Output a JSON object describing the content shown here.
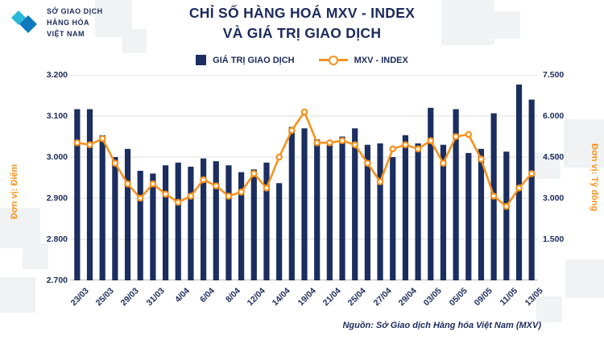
{
  "logo": {
    "line1": "SỞ GIAO DỊCH",
    "line2": "HÀNG HÓA",
    "line3": "VIỆT NAM"
  },
  "title": {
    "line1": "CHỈ SỐ HÀNG HOÁ MXV - INDEX",
    "line2": "VÀ GIÁ TRỊ GIAO DỊCH"
  },
  "legend": {
    "bars": "GIÁ TRỊ GIAO DỊCH",
    "line": "MXV - INDEX"
  },
  "axes": {
    "left_unit": "Đơn vị: Điểm",
    "right_unit": "Đơn vị: Tỷ đồng",
    "left_ticks": [
      "3.200",
      "3.100",
      "3.000",
      "2.900",
      "2.800",
      "2.700"
    ],
    "right_ticks": [
      "7.500",
      "6.000",
      "4.500",
      "3.000",
      "1.500",
      ""
    ]
  },
  "source": "Nguồn: Sở Giao dịch Hàng hóa Việt Nam (MXV)",
  "colors": {
    "navy": "#1b2e5f",
    "orange": "#f6921e",
    "grid": "#dcdcdc"
  },
  "chart_data": {
    "type": "bar",
    "title": "CHỈ SỐ HÀNG HOÁ MXV - INDEX VÀ GIÁ TRỊ GIAO DỊCH",
    "grid": true,
    "legend_position": "top",
    "x_tick_labels": [
      "23/03",
      "25/03",
      "29/03",
      "31/03",
      "4/04",
      "6/04",
      "8/04",
      "12/04",
      "14/04",
      "19/04",
      "21/04",
      "25/04",
      "27/04",
      "29/04",
      "03/05",
      "05/05",
      "09/05",
      "11/05",
      "13/05"
    ],
    "x_label_every": 2,
    "left_axis": {
      "label": "Đơn vị: Điểm",
      "min": 2700,
      "max": 3200,
      "step": 100
    },
    "right_axis": {
      "label": "Đơn vị: Tỷ đồng",
      "min": 0,
      "max": 7500,
      "step": 1500
    },
    "series": [
      {
        "name": "GIÁ TRỊ GIAO DỊCH",
        "type": "bar",
        "axis": "right",
        "color": "#1b2e5f",
        "values": [
          6250,
          6250,
          5300,
          4500,
          4800,
          4000,
          3900,
          4200,
          4300,
          4150,
          4450,
          4350,
          4200,
          3950,
          4050,
          4300,
          3550,
          5600,
          5550,
          5150,
          5100,
          5250,
          5550,
          4950,
          5000,
          4500,
          5300,
          5000,
          6300,
          4950,
          6250,
          4650,
          4800,
          6100,
          4700,
          7150,
          6600
        ]
      },
      {
        "name": "MXV - INDEX",
        "type": "line",
        "axis": "left",
        "color": "#f6921e",
        "values": [
          3035,
          3030,
          3045,
          2985,
          2935,
          2900,
          2935,
          2910,
          2890,
          2905,
          2945,
          2930,
          2905,
          2915,
          2960,
          2925,
          3000,
          3065,
          3110,
          3035,
          3035,
          3040,
          3030,
          2985,
          2940,
          3020,
          3030,
          3020,
          3040,
          2985,
          3050,
          3055,
          2995,
          2905,
          2880,
          2925,
          2960
        ]
      }
    ]
  }
}
